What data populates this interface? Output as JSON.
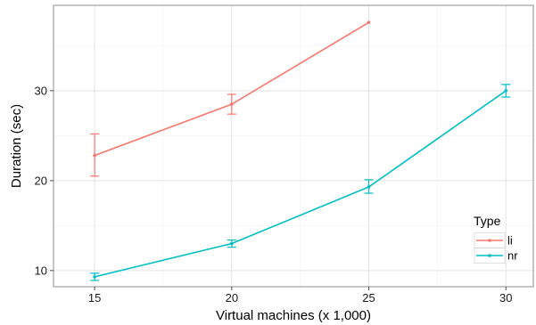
{
  "chart_data": {
    "type": "line",
    "xlabel": "Virtual machines (x 1,000)",
    "ylabel": "Duration (sec)",
    "xlim": [
      13.5,
      31.0
    ],
    "ylim": [
      8.2,
      39.5
    ],
    "xticks": [
      15,
      20,
      25,
      30
    ],
    "yticks": [
      10,
      20,
      30
    ],
    "grid": true,
    "legend": {
      "title": "Type",
      "placement": "bottom-right"
    },
    "series": [
      {
        "name": "li",
        "color": "#F8766D",
        "points": [
          {
            "x": 15,
            "y": 22.8,
            "err_low": 20.5,
            "err_high": 25.2
          },
          {
            "x": 20,
            "y": 28.5,
            "err_low": 27.4,
            "err_high": 29.6
          },
          {
            "x": 25,
            "y": 37.6,
            "err_low": null,
            "err_high": null
          }
        ]
      },
      {
        "name": "nr",
        "color": "#00BFC4",
        "points": [
          {
            "x": 15,
            "y": 9.3,
            "err_low": 8.9,
            "err_high": 9.7
          },
          {
            "x": 20,
            "y": 13.0,
            "err_low": 12.6,
            "err_high": 13.4
          },
          {
            "x": 25,
            "y": 19.3,
            "err_low": 18.6,
            "err_high": 20.1
          },
          {
            "x": 30,
            "y": 30.0,
            "err_low": 29.3,
            "err_high": 30.7
          }
        ]
      }
    ]
  }
}
